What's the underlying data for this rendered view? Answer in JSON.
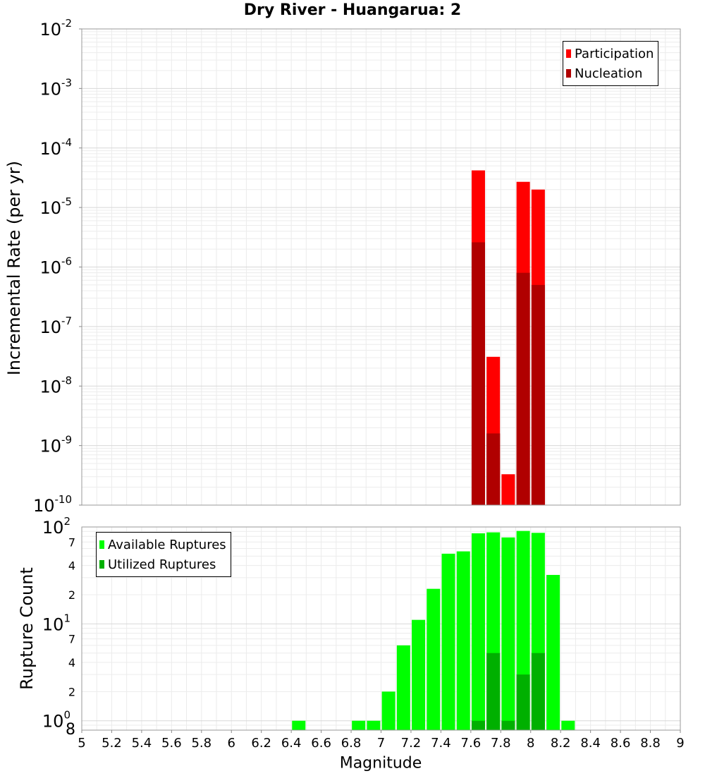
{
  "chart_data": [
    {
      "type": "bar",
      "title": "Dry River - Huangarua: 2",
      "ylabel": "Incremental Rate (per yr)",
      "yscale": "log",
      "ylim": [
        1e-10,
        0.01
      ],
      "xlim": [
        5,
        9
      ],
      "series": [
        {
          "name": "Participation",
          "color": "#ff0000",
          "x": [
            7.65,
            7.75,
            7.85,
            7.95,
            8.05
          ],
          "values": [
            4.2e-05,
            3.1e-08,
            3.3e-10,
            2.7e-05,
            2e-05
          ]
        },
        {
          "name": "Nucleation",
          "color": "#b00000",
          "x": [
            7.65,
            7.75,
            7.95,
            8.05
          ],
          "values": [
            2.6e-06,
            1.6e-09,
            8e-07,
            5e-07
          ]
        }
      ],
      "y_tick_labels": [
        {
          "base": "10",
          "exp": "-2"
        },
        {
          "base": "10",
          "exp": "-3"
        },
        {
          "base": "10",
          "exp": "-4"
        },
        {
          "base": "10",
          "exp": "-5"
        },
        {
          "base": "10",
          "exp": "-6"
        },
        {
          "base": "10",
          "exp": "-7"
        },
        {
          "base": "10",
          "exp": "-8"
        },
        {
          "base": "10",
          "exp": "-9"
        },
        {
          "base": "10",
          "exp": "-10"
        }
      ],
      "legend": {
        "position": "top-right"
      }
    },
    {
      "type": "bar",
      "ylabel": "Rupture Count",
      "xlabel": "Magnitude",
      "yscale": "log",
      "ylim": [
        0.8,
        100
      ],
      "xlim": [
        5,
        9
      ],
      "x_ticks": [
        "5",
        "5.2",
        "5.4",
        "5.6",
        "5.8",
        "6",
        "6.2",
        "6.4",
        "6.6",
        "6.8",
        "7",
        "7.2",
        "7.4",
        "7.6",
        "7.8",
        "8",
        "8.2",
        "8.4",
        "8.6",
        "8.8",
        "9"
      ],
      "series": [
        {
          "name": "Available Ruptures",
          "color": "#00ff00",
          "x": [
            6.45,
            6.85,
            6.95,
            7.05,
            7.15,
            7.25,
            7.35,
            7.45,
            7.55,
            7.65,
            7.75,
            7.85,
            7.95,
            8.05,
            8.15,
            8.25
          ],
          "values": [
            1,
            1,
            1,
            2,
            6,
            11,
            23,
            53,
            56,
            86,
            88,
            78,
            91,
            87,
            32,
            1
          ]
        },
        {
          "name": "Utilized Ruptures",
          "color": "#00b000",
          "x": [
            7.65,
            7.75,
            7.85,
            7.95,
            8.05
          ],
          "values": [
            1,
            5,
            1,
            3,
            5
          ]
        }
      ],
      "y_tick_labels": [
        {
          "text": "10",
          "exp": "2",
          "kind": "major"
        },
        {
          "text": "7",
          "kind": "minor"
        },
        {
          "text": "4",
          "kind": "minor"
        },
        {
          "text": "2",
          "kind": "minor"
        },
        {
          "text": "10",
          "exp": "1",
          "kind": "major"
        },
        {
          "text": "7",
          "kind": "minor"
        },
        {
          "text": "4",
          "kind": "minor"
        },
        {
          "text": "2",
          "kind": "minor"
        },
        {
          "text": "10",
          "exp": "0",
          "kind": "major"
        },
        {
          "text": "8",
          "kind": "minor"
        }
      ],
      "legend": {
        "position": "top-left"
      }
    }
  ]
}
